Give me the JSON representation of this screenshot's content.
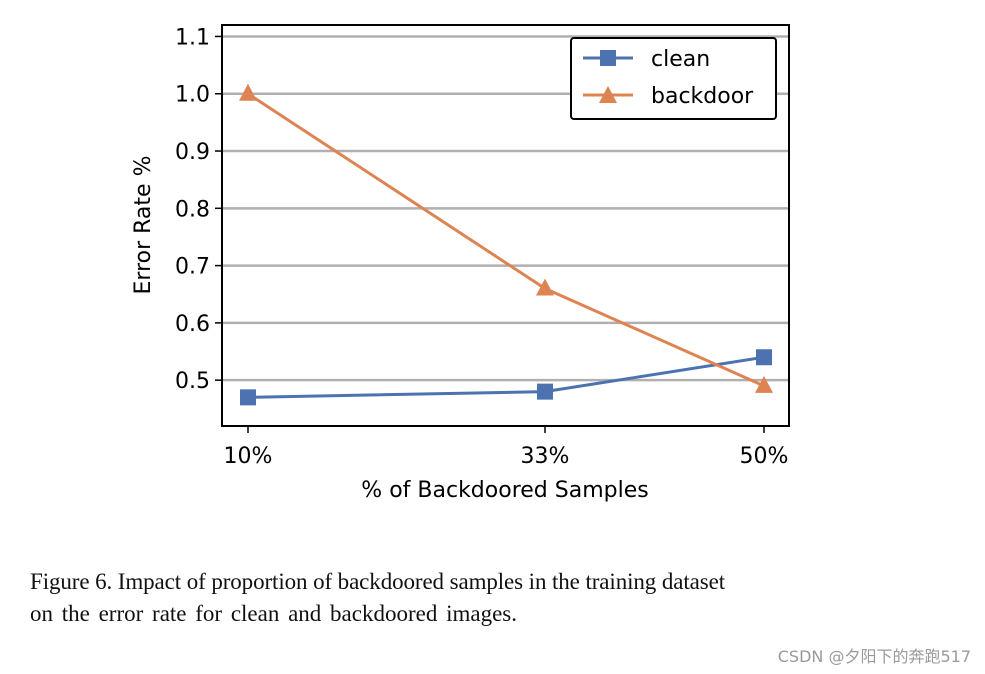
{
  "chart_data": {
    "type": "line",
    "categories": [
      "10%",
      "33%",
      "50%"
    ],
    "xlabel": "% of Backdoored Samples",
    "ylabel": "Error Rate %",
    "ylim": [
      0.42,
      1.12
    ],
    "yticks": [
      "0.5",
      "0.6",
      "0.7",
      "0.8",
      "0.9",
      "1.0",
      "1.1"
    ],
    "grid": "horizontal",
    "legend_position": "top-right",
    "series": [
      {
        "name": "clean",
        "values": [
          0.47,
          0.48,
          0.54
        ],
        "color": "#4c72b0",
        "marker": "square"
      },
      {
        "name": "backdoor",
        "values": [
          1.0,
          0.66,
          0.49
        ],
        "color": "#dd8452",
        "marker": "triangle"
      }
    ]
  },
  "caption": {
    "line1": "Figure 6. Impact of proportion of backdoored samples in the training dataset",
    "line2": "on the error rate for clean and backdoored images."
  },
  "watermark": "CSDN @夕阳下的奔跑517"
}
